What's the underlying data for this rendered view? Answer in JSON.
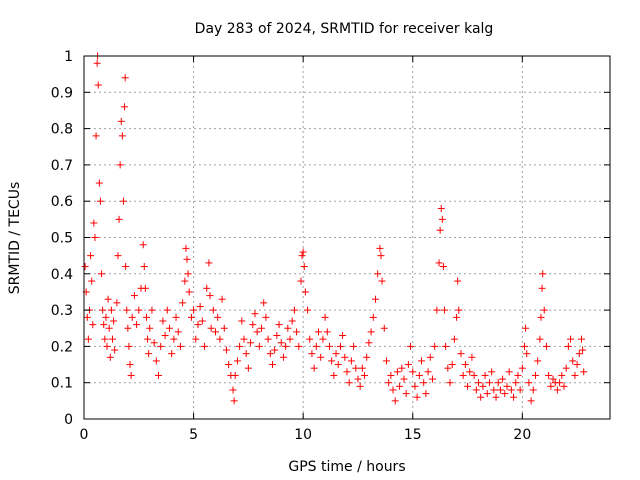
{
  "chart_data": {
    "type": "scatter",
    "title": "Day 283 of 2024, SRMTID for receiver kalg",
    "xlabel": "GPS time / hours",
    "ylabel": "SRMTID / TECUs",
    "xlim": [
      0,
      24
    ],
    "ylim": [
      0,
      1
    ],
    "xticks": [
      0,
      5,
      10,
      15,
      20
    ],
    "xtick_labels": [
      "0",
      "5",
      "10",
      "15",
      "20"
    ],
    "yticks": [
      0,
      0.1,
      0.2,
      0.3,
      0.4,
      0.5,
      0.6,
      0.7,
      0.8,
      0.9,
      1
    ],
    "ytick_labels": [
      "0",
      "0.1",
      "0.2",
      "0.3",
      "0.4",
      "0.5",
      "0.6",
      "0.7",
      "0.8",
      "0.9",
      "1"
    ],
    "grid": true,
    "marker": "+",
    "color": "#ff0000",
    "series": [
      {
        "name": "SRMTID",
        "points": [
          [
            0.05,
            0.42
          ],
          [
            0.1,
            0.35
          ],
          [
            0.15,
            0.28
          ],
          [
            0.2,
            0.22
          ],
          [
            0.25,
            0.3
          ],
          [
            0.3,
            0.45
          ],
          [
            0.35,
            0.38
          ],
          [
            0.4,
            0.26
          ],
          [
            0.45,
            0.54
          ],
          [
            0.5,
            0.5
          ],
          [
            0.55,
            0.78
          ],
          [
            0.6,
            0.98
          ],
          [
            0.62,
            1.0
          ],
          [
            0.65,
            0.92
          ],
          [
            0.7,
            0.65
          ],
          [
            0.75,
            0.6
          ],
          [
            0.8,
            0.4
          ],
          [
            0.85,
            0.3
          ],
          [
            0.9,
            0.26
          ],
          [
            0.95,
            0.22
          ],
          [
            1.0,
            0.28
          ],
          [
            1.05,
            0.2
          ],
          [
            1.1,
            0.33
          ],
          [
            1.15,
            0.25
          ],
          [
            1.2,
            0.17
          ],
          [
            1.25,
            0.3
          ],
          [
            1.3,
            0.22
          ],
          [
            1.35,
            0.27
          ],
          [
            1.4,
            0.19
          ],
          [
            1.5,
            0.32
          ],
          [
            1.55,
            0.45
          ],
          [
            1.6,
            0.55
          ],
          [
            1.65,
            0.7
          ],
          [
            1.7,
            0.82
          ],
          [
            1.75,
            0.78
          ],
          [
            1.8,
            0.6
          ],
          [
            1.85,
            0.86
          ],
          [
            1.88,
            0.94
          ],
          [
            1.9,
            0.42
          ],
          [
            1.95,
            0.3
          ],
          [
            2.0,
            0.25
          ],
          [
            2.05,
            0.2
          ],
          [
            2.1,
            0.15
          ],
          [
            2.15,
            0.12
          ],
          [
            2.2,
            0.28
          ],
          [
            2.3,
            0.34
          ],
          [
            2.4,
            0.26
          ],
          [
            2.5,
            0.3
          ],
          [
            2.6,
            0.36
          ],
          [
            2.7,
            0.48
          ],
          [
            2.75,
            0.42
          ],
          [
            2.8,
            0.36
          ],
          [
            2.85,
            0.28
          ],
          [
            2.9,
            0.22
          ],
          [
            2.95,
            0.18
          ],
          [
            3.0,
            0.25
          ],
          [
            3.1,
            0.3
          ],
          [
            3.2,
            0.21
          ],
          [
            3.3,
            0.16
          ],
          [
            3.4,
            0.12
          ],
          [
            3.5,
            0.2
          ],
          [
            3.6,
            0.27
          ],
          [
            3.7,
            0.23
          ],
          [
            3.8,
            0.3
          ],
          [
            3.9,
            0.25
          ],
          [
            4.0,
            0.18
          ],
          [
            4.1,
            0.22
          ],
          [
            4.2,
            0.28
          ],
          [
            4.3,
            0.24
          ],
          [
            4.4,
            0.2
          ],
          [
            4.5,
            0.32
          ],
          [
            4.6,
            0.38
          ],
          [
            4.65,
            0.47
          ],
          [
            4.7,
            0.44
          ],
          [
            4.75,
            0.4
          ],
          [
            4.8,
            0.35
          ],
          [
            4.9,
            0.28
          ],
          [
            5.0,
            0.3
          ],
          [
            5.1,
            0.22
          ],
          [
            5.2,
            0.26
          ],
          [
            5.3,
            0.31
          ],
          [
            5.4,
            0.27
          ],
          [
            5.5,
            0.2
          ],
          [
            5.6,
            0.36
          ],
          [
            5.7,
            0.43
          ],
          [
            5.75,
            0.34
          ],
          [
            5.8,
            0.25
          ],
          [
            5.9,
            0.3
          ],
          [
            6.0,
            0.24
          ],
          [
            6.1,
            0.28
          ],
          [
            6.2,
            0.22
          ],
          [
            6.3,
            0.33
          ],
          [
            6.4,
            0.25
          ],
          [
            6.5,
            0.19
          ],
          [
            6.6,
            0.15
          ],
          [
            6.7,
            0.12
          ],
          [
            6.8,
            0.08
          ],
          [
            6.85,
            0.05
          ],
          [
            6.9,
            0.12
          ],
          [
            7.0,
            0.16
          ],
          [
            7.1,
            0.2
          ],
          [
            7.2,
            0.27
          ],
          [
            7.3,
            0.22
          ],
          [
            7.4,
            0.18
          ],
          [
            7.5,
            0.14
          ],
          [
            7.6,
            0.21
          ],
          [
            7.7,
            0.26
          ],
          [
            7.8,
            0.29
          ],
          [
            7.9,
            0.24
          ],
          [
            8.0,
            0.2
          ],
          [
            8.1,
            0.25
          ],
          [
            8.2,
            0.32
          ],
          [
            8.3,
            0.28
          ],
          [
            8.4,
            0.22
          ],
          [
            8.5,
            0.18
          ],
          [
            8.6,
            0.15
          ],
          [
            8.7,
            0.19
          ],
          [
            8.8,
            0.23
          ],
          [
            8.9,
            0.26
          ],
          [
            9.0,
            0.21
          ],
          [
            9.1,
            0.17
          ],
          [
            9.2,
            0.2
          ],
          [
            9.3,
            0.25
          ],
          [
            9.4,
            0.22
          ],
          [
            9.5,
            0.27
          ],
          [
            9.6,
            0.3
          ],
          [
            9.7,
            0.24
          ],
          [
            9.8,
            0.2
          ],
          [
            9.9,
            0.38
          ],
          [
            9.95,
            0.45
          ],
          [
            10.0,
            0.46
          ],
          [
            10.05,
            0.42
          ],
          [
            10.1,
            0.35
          ],
          [
            10.2,
            0.3
          ],
          [
            10.3,
            0.22
          ],
          [
            10.4,
            0.18
          ],
          [
            10.5,
            0.14
          ],
          [
            10.6,
            0.2
          ],
          [
            10.7,
            0.24
          ],
          [
            10.8,
            0.17
          ],
          [
            10.9,
            0.22
          ],
          [
            11.0,
            0.28
          ],
          [
            11.1,
            0.24
          ],
          [
            11.2,
            0.2
          ],
          [
            11.3,
            0.16
          ],
          [
            11.4,
            0.12
          ],
          [
            11.5,
            0.18
          ],
          [
            11.6,
            0.15
          ],
          [
            11.7,
            0.2
          ],
          [
            11.8,
            0.23
          ],
          [
            11.9,
            0.17
          ],
          [
            12.0,
            0.13
          ],
          [
            12.1,
            0.1
          ],
          [
            12.2,
            0.16
          ],
          [
            12.3,
            0.2
          ],
          [
            12.4,
            0.14
          ],
          [
            12.5,
            0.11
          ],
          [
            12.6,
            0.09
          ],
          [
            12.7,
            0.14
          ],
          [
            12.8,
            0.12
          ],
          [
            12.9,
            0.17
          ],
          [
            13.0,
            0.21
          ],
          [
            13.1,
            0.24
          ],
          [
            13.2,
            0.28
          ],
          [
            13.3,
            0.33
          ],
          [
            13.4,
            0.4
          ],
          [
            13.5,
            0.47
          ],
          [
            13.55,
            0.45
          ],
          [
            13.6,
            0.38
          ],
          [
            13.7,
            0.25
          ],
          [
            13.8,
            0.16
          ],
          [
            13.9,
            0.1
          ],
          [
            14.0,
            0.12
          ],
          [
            14.1,
            0.08
          ],
          [
            14.2,
            0.05
          ],
          [
            14.3,
            0.13
          ],
          [
            14.4,
            0.09
          ],
          [
            14.5,
            0.14
          ],
          [
            14.6,
            0.11
          ],
          [
            14.7,
            0.07
          ],
          [
            14.8,
            0.15
          ],
          [
            14.9,
            0.2
          ],
          [
            15.0,
            0.13
          ],
          [
            15.1,
            0.09
          ],
          [
            15.2,
            0.06
          ],
          [
            15.3,
            0.12
          ],
          [
            15.4,
            0.16
          ],
          [
            15.5,
            0.1
          ],
          [
            15.6,
            0.07
          ],
          [
            15.7,
            0.13
          ],
          [
            15.8,
            0.17
          ],
          [
            15.9,
            0.11
          ],
          [
            16.0,
            0.2
          ],
          [
            16.1,
            0.3
          ],
          [
            16.2,
            0.43
          ],
          [
            16.25,
            0.52
          ],
          [
            16.3,
            0.58
          ],
          [
            16.35,
            0.55
          ],
          [
            16.4,
            0.42
          ],
          [
            16.45,
            0.3
          ],
          [
            16.5,
            0.2
          ],
          [
            16.6,
            0.14
          ],
          [
            16.7,
            0.1
          ],
          [
            16.8,
            0.15
          ],
          [
            16.9,
            0.22
          ],
          [
            17.0,
            0.28
          ],
          [
            17.05,
            0.38
          ],
          [
            17.1,
            0.3
          ],
          [
            17.2,
            0.18
          ],
          [
            17.3,
            0.12
          ],
          [
            17.4,
            0.15
          ],
          [
            17.5,
            0.09
          ],
          [
            17.6,
            0.13
          ],
          [
            17.7,
            0.17
          ],
          [
            17.8,
            0.12
          ],
          [
            17.9,
            0.08
          ],
          [
            18.0,
            0.1
          ],
          [
            18.1,
            0.06
          ],
          [
            18.2,
            0.09
          ],
          [
            18.3,
            0.12
          ],
          [
            18.4,
            0.07
          ],
          [
            18.5,
            0.1
          ],
          [
            18.6,
            0.13
          ],
          [
            18.7,
            0.08
          ],
          [
            18.8,
            0.06
          ],
          [
            18.9,
            0.1
          ],
          [
            19.0,
            0.08
          ],
          [
            19.1,
            0.11
          ],
          [
            19.2,
            0.07
          ],
          [
            19.3,
            0.09
          ],
          [
            19.4,
            0.13
          ],
          [
            19.5,
            0.08
          ],
          [
            19.6,
            0.06
          ],
          [
            19.7,
            0.1
          ],
          [
            19.8,
            0.12
          ],
          [
            19.9,
            0.08
          ],
          [
            20.0,
            0.14
          ],
          [
            20.1,
            0.2
          ],
          [
            20.15,
            0.25
          ],
          [
            20.2,
            0.18
          ],
          [
            20.3,
            0.1
          ],
          [
            20.4,
            0.05
          ],
          [
            20.5,
            0.08
          ],
          [
            20.6,
            0.12
          ],
          [
            20.7,
            0.16
          ],
          [
            20.8,
            0.22
          ],
          [
            20.85,
            0.28
          ],
          [
            20.9,
            0.36
          ],
          [
            20.93,
            0.4
          ],
          [
            21.0,
            0.3
          ],
          [
            21.1,
            0.2
          ],
          [
            21.2,
            0.12
          ],
          [
            21.3,
            0.09
          ],
          [
            21.4,
            0.11
          ],
          [
            21.5,
            0.1
          ],
          [
            21.6,
            0.08
          ],
          [
            21.7,
            0.1
          ],
          [
            21.8,
            0.12
          ],
          [
            21.9,
            0.09
          ],
          [
            22.0,
            0.14
          ],
          [
            22.1,
            0.2
          ],
          [
            22.2,
            0.22
          ],
          [
            22.3,
            0.16
          ],
          [
            22.4,
            0.12
          ],
          [
            22.5,
            0.15
          ],
          [
            22.6,
            0.18
          ],
          [
            22.7,
            0.22
          ],
          [
            22.75,
            0.19
          ],
          [
            22.8,
            0.13
          ]
        ]
      }
    ]
  }
}
